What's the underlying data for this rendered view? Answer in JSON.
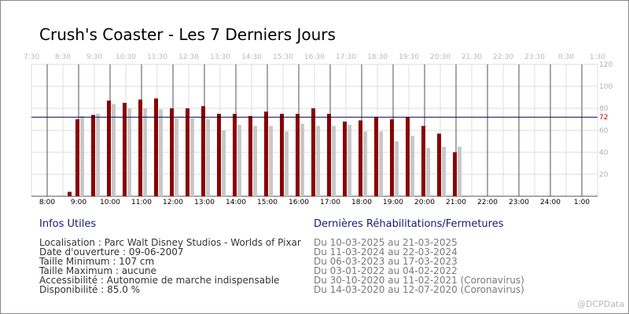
{
  "title": "Crush's Coaster - Les 7 Derniers Jours",
  "chart_data": {
    "type": "bar",
    "title": "Crush's Coaster - Les 7 Derniers Jours",
    "x_bottom_labels": [
      "8:00",
      "9:00",
      "10:00",
      "11:00",
      "12:00",
      "13:00",
      "14:00",
      "15:00",
      "16:00",
      "17:00",
      "18:00",
      "19:00",
      "20:00",
      "21:00",
      "22:00",
      "23:00",
      "24:00",
      "1:00"
    ],
    "x_top_labels": [
      "7:30",
      "8:30",
      "9:30",
      "10:30",
      "11:30",
      "12:30",
      "13:30",
      "14:30",
      "15:30",
      "16:30",
      "17:30",
      "18:30",
      "19:30",
      "20:30",
      "21:30",
      "22:30",
      "23:30",
      "0:30",
      "1:30"
    ],
    "y_ticks": [
      20,
      40,
      60,
      80,
      100,
      120
    ],
    "ylim": [
      0,
      120
    ],
    "xlim_hours": [
      7.5,
      25.5
    ],
    "reference_line": {
      "value": 72,
      "label": "72",
      "color": "#00004d"
    },
    "grid": true,
    "series": [
      {
        "color": "#8b0000",
        "x": [
          "8:45",
          "9:00",
          "9:30",
          "10:00",
          "10:30",
          "11:00",
          "11:30",
          "12:00",
          "12:30",
          "13:00",
          "13:30",
          "14:00",
          "14:30",
          "15:00",
          "15:30",
          "16:00",
          "16:30",
          "17:00",
          "17:30",
          "18:00",
          "18:30",
          "19:00",
          "19:30",
          "20:00",
          "20:30",
          "21:00"
        ],
        "values": [
          4,
          70,
          74,
          87,
          85,
          88,
          89,
          80,
          80,
          82,
          75,
          75,
          73,
          77,
          75,
          75,
          80,
          75,
          68,
          69,
          72,
          70,
          72,
          64,
          57,
          40
        ]
      },
      {
        "color": "#c8c8c8",
        "x": [
          "9:00",
          "9:30",
          "10:00",
          "10:30",
          "11:00",
          "11:30",
          "12:00",
          "12:30",
          "13:00",
          "13:30",
          "14:00",
          "14:30",
          "15:00",
          "15:30",
          "16:00",
          "16:30",
          "17:00",
          "17:30",
          "18:00",
          "18:30",
          "19:00",
          "19:30",
          "20:00",
          "20:30",
          "21:00"
        ],
        "values": [
          73,
          75,
          84,
          80,
          80,
          79,
          71,
          71,
          70,
          60,
          65,
          64,
          64,
          59,
          66,
          64,
          64,
          65,
          59,
          59,
          50,
          55,
          44,
          45,
          45
        ]
      }
    ]
  },
  "infos": {
    "heading": "Infos Utiles",
    "lines": [
      "Localisation : Parc Walt Disney Studios - Worlds of Pixar",
      "Date d'ouverture : 09-06-2007",
      "Taille Minimum : 107 cm",
      "Taille Maximum : aucune",
      "Accessibilité : Autonomie de marche indispensable",
      "Disponibilité : 85.0 %"
    ]
  },
  "closures": {
    "heading": "Dernières Réhabilitations/Fermetures",
    "lines": [
      "Du 10-03-2025 au 21-03-2025",
      "Du 11-03-2024 au 22-03-2024",
      "Du 06-03-2023 au 17-03-2023",
      "Du 03-01-2022 au 04-02-2022",
      "Du 30-10-2020 au 11-02-2021 (Coronavirus)",
      "Du 14-03-2020 au 12-07-2020 (Coronavirus)"
    ]
  },
  "watermark": "@DCPData"
}
